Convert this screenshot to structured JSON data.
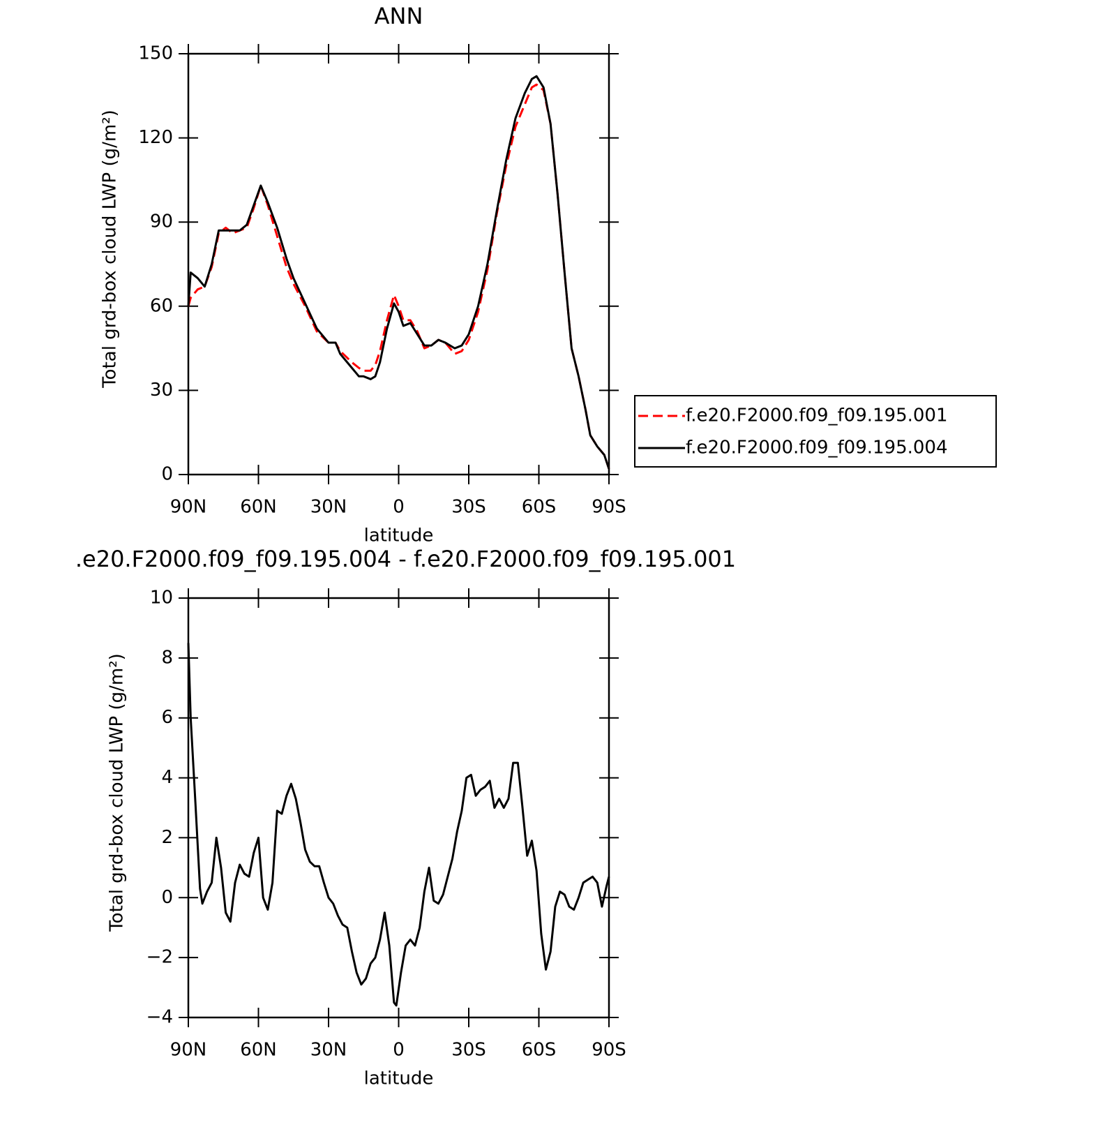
{
  "chart_data": [
    {
      "type": "line",
      "title": "ANN",
      "xlabel": "latitude",
      "ylabel": "Total grd-box cloud LWP (g/m²)",
      "x": [
        90,
        89,
        86,
        83,
        80,
        77,
        74,
        71,
        68,
        65,
        62,
        59,
        56,
        52,
        48,
        45,
        40,
        35,
        30,
        27,
        25,
        20,
        17,
        15,
        12,
        10,
        8,
        5,
        2,
        0,
        -2,
        -5,
        -8,
        -11,
        -14,
        -17,
        -20,
        -24,
        -27,
        -30,
        -34,
        -38,
        -42,
        -46,
        -50,
        -54,
        -57,
        -59,
        -62,
        -65,
        -68,
        -71,
        -74,
        -77,
        -80,
        -82,
        -85,
        -88,
        -90
      ],
      "series": [
        {
          "name": "f.e20.F2000.f09_f09.195.001",
          "color": "#ff0000",
          "dash": true,
          "values": [
            60,
            63,
            66,
            67,
            74,
            86,
            88,
            86,
            87,
            88,
            95,
            103,
            96,
            85,
            74,
            68,
            60,
            51,
            47,
            47,
            44,
            40,
            38,
            37,
            37,
            39,
            44,
            55,
            64,
            60,
            55,
            55,
            51,
            45,
            46,
            48,
            47,
            43,
            44,
            48,
            58,
            73,
            93,
            110,
            124,
            132,
            138,
            139,
            137,
            125,
            100,
            72,
            45,
            35,
            23,
            14,
            10,
            7,
            2
          ]
        },
        {
          "name": "f.e20.F2000.f09_f09.195.004",
          "color": "#000000",
          "dash": false,
          "values": [
            60,
            72,
            70,
            67,
            75,
            87,
            87,
            87,
            87,
            89,
            96,
            103,
            97,
            88,
            77,
            70,
            61,
            52,
            47,
            47,
            43,
            38,
            35,
            35,
            34,
            35,
            40,
            52,
            61,
            58,
            53,
            54,
            50,
            46,
            46,
            48,
            47,
            45,
            46,
            50,
            60,
            75,
            94,
            112,
            127,
            136,
            141,
            142,
            138,
            125,
            100,
            72,
            45,
            35,
            23,
            14,
            10,
            7,
            2
          ]
        }
      ],
      "xlim": [
        90,
        -90
      ],
      "xticks": [
        {
          "value": 90,
          "label": "90N"
        },
        {
          "value": 60,
          "label": "60N"
        },
        {
          "value": 30,
          "label": "30N"
        },
        0,
        {
          "value": -30,
          "label": "30S"
        },
        {
          "value": -60,
          "label": "60S"
        },
        {
          "value": -90,
          "label": "90S"
        }
      ],
      "ylim": [
        0,
        150
      ],
      "yticks": [
        0,
        30,
        60,
        90,
        120,
        150
      ],
      "legend": "right"
    },
    {
      "type": "line",
      "title": ".e20.F2000.f09_f09.195.004 - f.e20.F2000.f09_f09.195.001",
      "xlabel": "latitude",
      "ylabel": "Total grd-box cloud LWP (g/m²)",
      "x": [
        90,
        89,
        87,
        85,
        84,
        82,
        80,
        78,
        76,
        74,
        72,
        70,
        68,
        66,
        64,
        62,
        60,
        58,
        56,
        54,
        52,
        50,
        48,
        46,
        44,
        42,
        40,
        38,
        36,
        34,
        32,
        30,
        28,
        26,
        24,
        22,
        20,
        18,
        16,
        14,
        12,
        10,
        8,
        6,
        4,
        2,
        1,
        -1,
        -3,
        -5,
        -7,
        -9,
        -11,
        -13,
        -15,
        -17,
        -19,
        -21,
        -23,
        -25,
        -27,
        -29,
        -31,
        -33,
        -35,
        -37,
        -39,
        -41,
        -43,
        -45,
        -47,
        -49,
        -51,
        -53,
        -55,
        -57,
        -59,
        -61,
        -63,
        -65,
        -67,
        -69,
        -71,
        -73,
        -75,
        -77,
        -79,
        -81,
        -83,
        -85,
        -87,
        -89,
        -90
      ],
      "values": [
        8.5,
        6,
        3.2,
        0.3,
        -0.2,
        0.2,
        0.5,
        2.0,
        1,
        -0.5,
        -0.8,
        0.5,
        1.1,
        0.8,
        0.7,
        1.5,
        2.0,
        0,
        -0.4,
        0.5,
        2.9,
        2.8,
        3.4,
        3.8,
        3.3,
        2.5,
        1.6,
        1.2,
        1.05,
        1.05,
        0.5,
        0,
        -0.2,
        -0.6,
        -0.9,
        -1.0,
        -1.8,
        -2.5,
        -2.9,
        -2.7,
        -2.2,
        -2.0,
        -1.4,
        -0.5,
        -1.6,
        -3.5,
        -3.6,
        -2.5,
        -1.6,
        -1.4,
        -1.6,
        -1.0,
        0.2,
        1.0,
        -0.1,
        -0.2,
        0.1,
        0.7,
        1.3,
        2.2,
        2.9,
        4.0,
        4.1,
        3.4,
        3.6,
        3.7,
        3.9,
        3.0,
        3.3,
        3.0,
        3.3,
        4.5,
        4.5,
        3.0,
        1.4,
        1.9,
        0.9,
        -1.2,
        -2.4,
        -1.8,
        -0.3,
        0.2,
        0.1,
        -0.3,
        -0.4,
        0,
        0.5,
        0.6,
        0.7,
        0.5,
        -0.3,
        0.4,
        0.7
      ],
      "color": "#000000",
      "xlim": [
        90,
        -90
      ],
      "xticks": [
        {
          "value": 90,
          "label": "90N"
        },
        {
          "value": 60,
          "label": "60N"
        },
        {
          "value": 30,
          "label": "30N"
        },
        0,
        {
          "value": -30,
          "label": "30S"
        },
        {
          "value": -60,
          "label": "60S"
        },
        {
          "value": -90,
          "label": "90S"
        }
      ],
      "ylim": [
        -4,
        10
      ],
      "yticks": [
        {
          "value": -4,
          "label": "−4"
        },
        {
          "value": -2,
          "label": "−2"
        },
        0,
        2,
        4,
        6,
        8,
        10
      ]
    }
  ]
}
